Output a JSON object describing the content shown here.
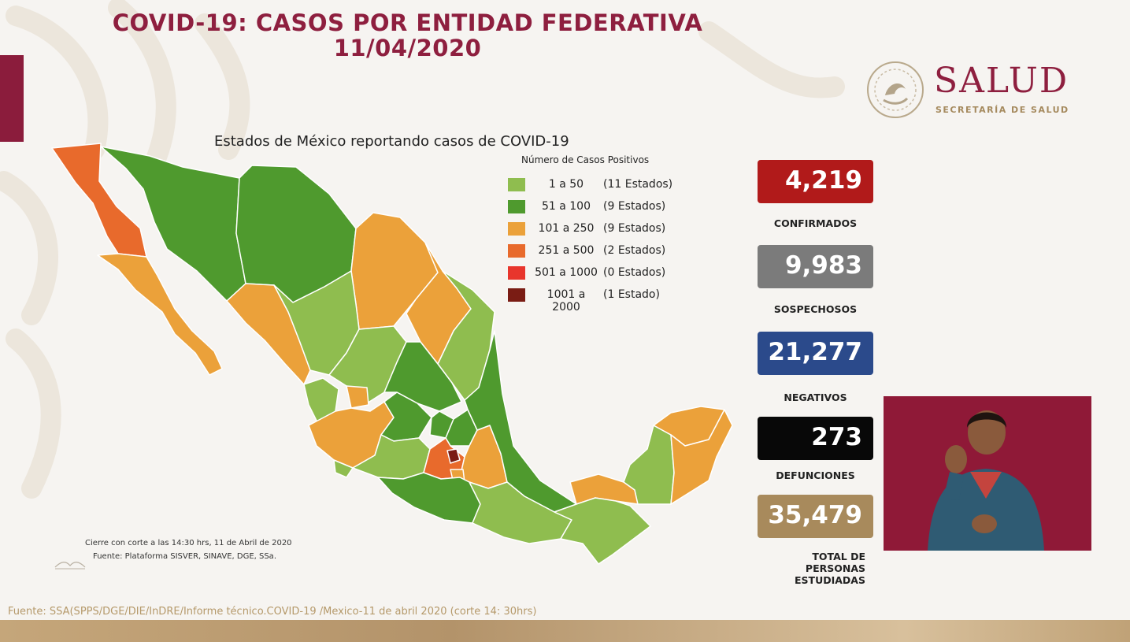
{
  "header": {
    "title_line1": "COVID-19: CASOS POR ENTIDAD FEDERATIVA",
    "title_line2": "11/04/2020"
  },
  "logo": {
    "name": "SALUD",
    "subtitle": "SECRETARÍA DE SALUD"
  },
  "map": {
    "title": "Estados de México reportando casos de COVID-19",
    "legend_title": "Número de Casos Positivos",
    "legend": [
      {
        "range": "1 a 50",
        "count": "(11 Estados)",
        "color": "#8fbd4f"
      },
      {
        "range": "51 a 100",
        "count": "(9 Estados)",
        "color": "#4f9a2e"
      },
      {
        "range": "101 a 250",
        "count": "(9 Estados)",
        "color": "#eba13a"
      },
      {
        "range": "251 a 500",
        "count": "(2 Estados)",
        "color": "#e86a2c"
      },
      {
        "range": "501 a 1000",
        "count": "(0 Estados)",
        "color": "#e8352c"
      },
      {
        "range": "1001 a 2000",
        "count": "(1 Estado)",
        "color": "#7a1c14"
      }
    ],
    "footnote_cut": "Cierre con corte a las 14:30 hrs, 11 de Abril de 2020",
    "footnote_source": "Fuente: Plataforma SISVER, SINAVE, DGE, SSa."
  },
  "stats": [
    {
      "value": "4,219",
      "label": "CONFIRMADOS",
      "color": "#b11a1a"
    },
    {
      "value": "9,983",
      "label": "SOSPECHOSOS",
      "color": "#7b7b7b"
    },
    {
      "value": "21,277",
      "label": "NEGATIVOS",
      "color": "#2b4a8b"
    },
    {
      "value": "273",
      "label": "DEFUNCIONES",
      "color": "#080808"
    },
    {
      "value": "35,479",
      "label_lines": [
        "TOTAL DE",
        "PERSONAS",
        "ESTUDIADAS"
      ],
      "color": "#a88a5c"
    }
  ],
  "source": "Fuente: SSA(SPPS/DGE/DIE/InDRE/Informe técnico.COVID-19 /Mexico-11 de abril 2020 (corte 14: 30hrs)",
  "colors": {
    "accent": "#8e1f3f",
    "gold": "#b5996a"
  }
}
